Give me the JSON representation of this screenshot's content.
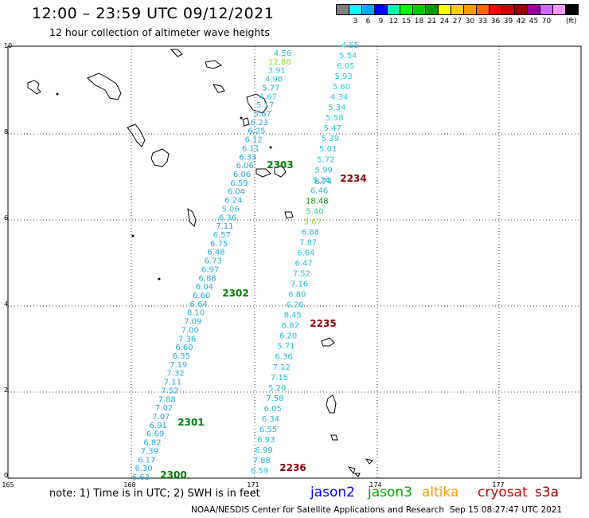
{
  "header": {
    "title": "12:00 – 23:59 UTC 09/12/2021",
    "subtitle": "12 hour collection of altimeter wave heights"
  },
  "legend": {
    "unit": "(ft)",
    "colors": [
      "#7f7f7f",
      "#00ffff",
      "#00aaff",
      "#0000ff",
      "#00ffaa",
      "#00ff00",
      "#00cc00",
      "#009900",
      "#ffff00",
      "#ffcc00",
      "#ff9900",
      "#ff6600",
      "#ff0000",
      "#cc0000",
      "#990000",
      "#990099",
      "#cc66ff",
      "#ff99ff",
      "#000000"
    ],
    "labels": [
      "3",
      "6",
      "9",
      "12",
      "15",
      "18",
      "21",
      "24",
      "27",
      "30",
      "33",
      "36",
      "39",
      "42",
      "45",
      "70"
    ]
  },
  "axes": {
    "x_ticks": [
      "165",
      "168",
      "171",
      "174",
      "177"
    ],
    "y_ticks": [
      "0",
      "2",
      "4",
      "6",
      "8",
      "10"
    ]
  },
  "tracks": {
    "left": [
      "4.56",
      "12.88",
      "3.91",
      "4.98",
      "5.77",
      "4.67",
      "5.17",
      "5.67",
      "6.23",
      "6.25",
      "6.12",
      "6.11",
      "6.33",
      "6.06",
      "6.06",
      "6.59",
      "6.04",
      "6.24",
      "5.06",
      "6.36",
      "7.11",
      "6.57",
      "6.75",
      "6.48",
      "6.73",
      "6.97",
      "6.88",
      "6.04",
      "6.60",
      "6.64",
      "8.10",
      "7.09",
      "7.00",
      "7.36",
      "6.60",
      "6.35",
      "7.19",
      "7.32",
      "7.11",
      "7.52",
      "7.88",
      "7.02",
      "7.07",
      "6.91",
      "6.69",
      "6.82",
      "7.39",
      "6.17",
      "6.30",
      "6.63"
    ],
    "right": [
      "4.55",
      "5.54",
      "6.05",
      "5.93",
      "5.60",
      "4.34",
      "5.34",
      "5.58",
      "5.47",
      "5.39",
      "5.01",
      "5.72",
      "5.99",
      "5.24",
      "6.46",
      "18.48",
      "5.40",
      "5.67",
      "6.88",
      "7.87",
      "6.64",
      "6.47",
      "7.52",
      "7.16",
      "6.80",
      "6.26",
      "8.45",
      "6.82",
      "6.20",
      "5.71",
      "6.36",
      "7.12",
      "7.15",
      "5.20",
      "7.58",
      "6.05",
      "6.34",
      "6.55",
      "6.93",
      "6.99",
      "7.88",
      "6.59"
    ],
    "right_overlap": "6.74"
  },
  "pass_labels": [
    {
      "text": "2303",
      "color": "#008000"
    },
    {
      "text": "2302",
      "color": "#008000"
    },
    {
      "text": "2301",
      "color": "#008000"
    },
    {
      "text": "2300",
      "color": "#008000"
    },
    {
      "text": "2234",
      "color": "#8b0000"
    },
    {
      "text": "2235",
      "color": "#8b0000"
    },
    {
      "text": "2236",
      "color": "#8b0000"
    }
  ],
  "footer": {
    "note": "note:  1) Time is in UTC;  2) SWH is in feet",
    "satellites": [
      {
        "name": "jason2",
        "color": "#0000ff"
      },
      {
        "name": "jason3",
        "color": "#00aa00"
      },
      {
        "name": "altika",
        "color": "#ff9900"
      },
      {
        "name": "cryosat",
        "color": "#cc0000"
      },
      {
        "name": "s3a",
        "color": "#990000"
      }
    ],
    "credit": "NOAA/NESDIS Center for Satellite Applications and Research",
    "timestamp": "Sep 15 08:27:47 UTC 2021"
  }
}
